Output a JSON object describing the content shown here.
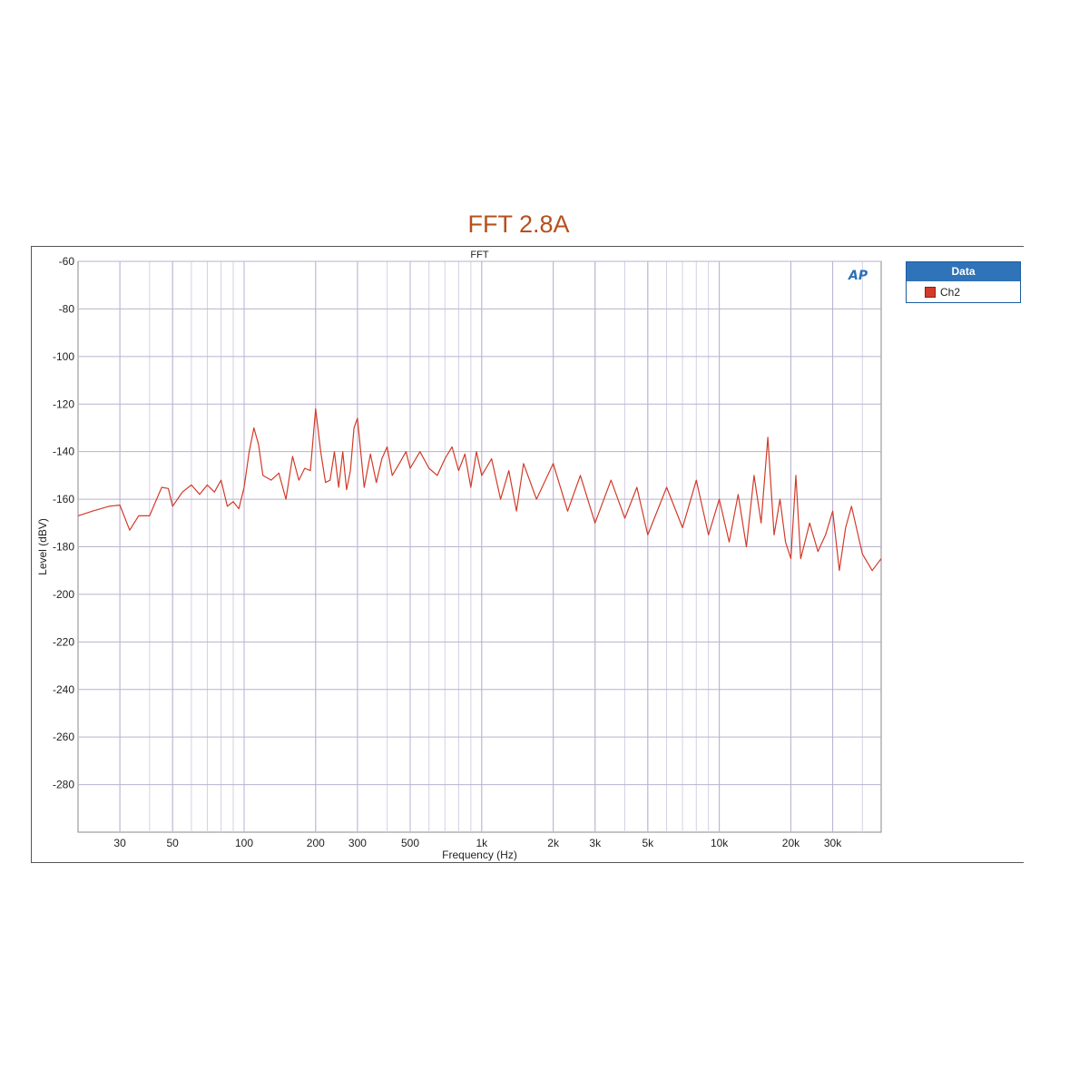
{
  "page_title": "FFT 2.8A",
  "legend": {
    "header": "Data",
    "items": [
      {
        "label": "Ch2",
        "color": "#d23b2a"
      }
    ]
  },
  "logo_text": "AP",
  "chart_data": {
    "type": "line",
    "title": "FFT",
    "xlabel": "Frequency (Hz)",
    "ylabel": "Level (dBV)",
    "x_scale": "log",
    "xlim": [
      20,
      48000
    ],
    "ylim": [
      -300,
      -60
    ],
    "x_ticks": [
      {
        "value": 30,
        "label": "30"
      },
      {
        "value": 50,
        "label": "50"
      },
      {
        "value": 100,
        "label": "100"
      },
      {
        "value": 200,
        "label": "200"
      },
      {
        "value": 300,
        "label": "300"
      },
      {
        "value": 500,
        "label": "500"
      },
      {
        "value": 1000,
        "label": "1k"
      },
      {
        "value": 2000,
        "label": "2k"
      },
      {
        "value": 3000,
        "label": "3k"
      },
      {
        "value": 5000,
        "label": "5k"
      },
      {
        "value": 10000,
        "label": "10k"
      },
      {
        "value": 20000,
        "label": "20k"
      },
      {
        "value": 30000,
        "label": "30k"
      }
    ],
    "y_ticks": [
      {
        "value": -60,
        "label": "-60"
      },
      {
        "value": -80,
        "label": "-80"
      },
      {
        "value": -100,
        "label": "-100"
      },
      {
        "value": -120,
        "label": "-120"
      },
      {
        "value": -140,
        "label": "-140"
      },
      {
        "value": -160,
        "label": "-160"
      },
      {
        "value": -180,
        "label": "-180"
      },
      {
        "value": -200,
        "label": "-200"
      },
      {
        "value": -220,
        "label": "-220"
      },
      {
        "value": -240,
        "label": "-240"
      },
      {
        "value": -260,
        "label": "-260"
      },
      {
        "value": -280,
        "label": "-280"
      }
    ],
    "grid": true,
    "legend_position": "right",
    "series": [
      {
        "name": "Ch2",
        "color": "#d23b2a",
        "x": [
          20,
          23,
          27,
          30,
          33,
          36,
          40,
          45,
          48,
          50,
          55,
          60,
          65,
          70,
          75,
          80,
          85,
          90,
          95,
          100,
          105,
          110,
          115,
          120,
          130,
          140,
          150,
          160,
          170,
          180,
          190,
          200,
          210,
          220,
          230,
          240,
          250,
          260,
          270,
          280,
          290,
          300,
          320,
          340,
          360,
          380,
          400,
          420,
          450,
          480,
          500,
          550,
          600,
          650,
          700,
          750,
          800,
          850,
          900,
          950,
          1000,
          1100,
          1200,
          1300,
          1400,
          1500,
          1700,
          2000,
          2300,
          2600,
          3000,
          3500,
          4000,
          4500,
          5000,
          6000,
          7000,
          8000,
          9000,
          10000,
          11000,
          12000,
          13000,
          14000,
          15000,
          16000,
          17000,
          18000,
          19000,
          20000,
          21000,
          22000,
          24000,
          26000,
          28000,
          30000,
          32000,
          34000,
          36000,
          40000,
          44000,
          48000
        ],
        "y": [
          -167,
          -165,
          -163,
          -162.5,
          -173,
          -167,
          -167,
          -155,
          -155.5,
          -163,
          -157,
          -154,
          -158,
          -154,
          -157,
          -152,
          -163,
          -161,
          -164,
          -155,
          -140,
          -130,
          -137,
          -150,
          -152,
          -149,
          -160,
          -142,
          -152,
          -147,
          -148,
          -122,
          -140,
          -153,
          -152,
          -140,
          -155,
          -140,
          -156,
          -148,
          -130,
          -126,
          -155,
          -141,
          -153,
          -143,
          -138,
          -150,
          -145,
          -140,
          -147,
          -140,
          -147,
          -150,
          -143,
          -138,
          -148,
          -141,
          -155,
          -140,
          -150,
          -143,
          -160,
          -148,
          -165,
          -145,
          -160,
          -145,
          -165,
          -150,
          -170,
          -152,
          -168,
          -155,
          -175,
          -155,
          -172,
          -152,
          -175,
          -160,
          -178,
          -158,
          -180,
          -150,
          -170,
          -134,
          -175,
          -160,
          -178,
          -185,
          -150,
          -185,
          -170,
          -182,
          -175,
          -165,
          -190,
          -172,
          -163,
          -183,
          -190,
          -185
        ]
      }
    ]
  }
}
